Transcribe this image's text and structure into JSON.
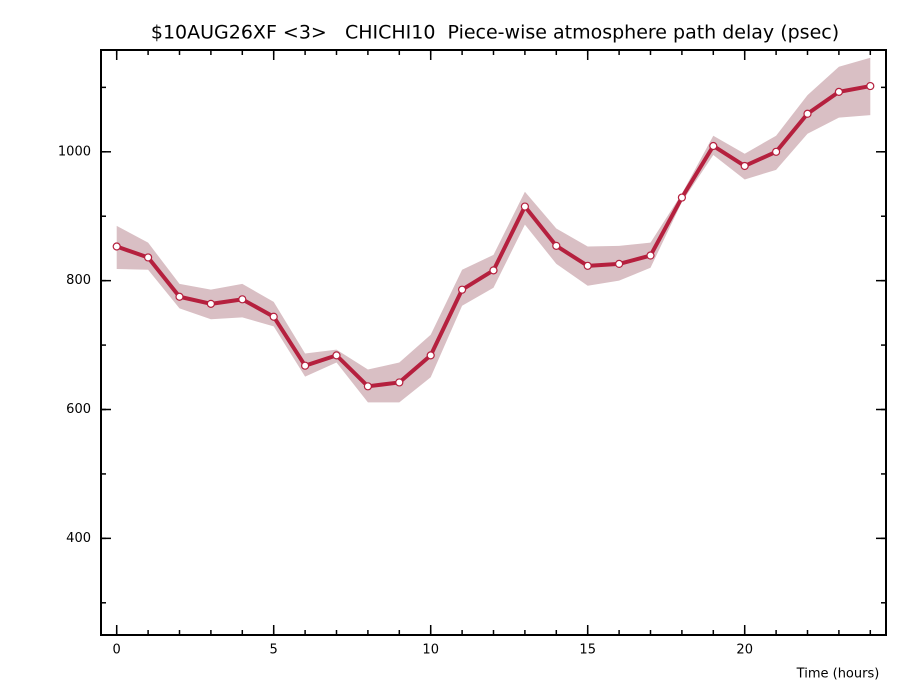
{
  "chart_data": {
    "type": "line",
    "title": "$10AUG26XF <3>   CHICHI10  Piece-wise atmosphere path delay (psec)",
    "x_label": "Time (hours)",
    "x": [
      0,
      1,
      2,
      3,
      4,
      5,
      6,
      7,
      8,
      9,
      10,
      11,
      12,
      13,
      14,
      15,
      16,
      17,
      18,
      19,
      20,
      21,
      22,
      23,
      24
    ],
    "series": [
      {
        "color": "#b5203e",
        "band_color": "#d9bfc4",
        "values": [
          853,
          836,
          775,
          764,
          771,
          744,
          668,
          684,
          636,
          642,
          684,
          786,
          816,
          915,
          854,
          823,
          826,
          839,
          929,
          1009,
          978,
          1000,
          1059,
          1093,
          1102
        ],
        "band_upper": [
          885,
          859,
          795,
          786,
          795,
          767,
          687,
          693,
          662,
          673,
          716,
          817,
          840,
          938,
          881,
          853,
          854,
          859,
          935,
          1025,
          997,
          1025,
          1088,
          1132,
          1146
        ],
        "band_lower": [
          818,
          817,
          757,
          740,
          743,
          729,
          651,
          673,
          611,
          611,
          650,
          761,
          789,
          887,
          826,
          792,
          800,
          820,
          922,
          995,
          957,
          972,
          1028,
          1053,
          1057
        ]
      }
    ],
    "xlim": [
      -0.5,
      24.5
    ],
    "ylim": [
      250,
      1158
    ],
    "xticks": [
      0,
      5,
      10,
      15,
      20
    ],
    "yticks": [
      400,
      600,
      800,
      1000
    ],
    "xminor_ticks": [
      0,
      1,
      2,
      3,
      4,
      5,
      6,
      7,
      8,
      9,
      10,
      11,
      12,
      13,
      14,
      15,
      16,
      17,
      18,
      19,
      20,
      21,
      22,
      23,
      24
    ],
    "yminor_ticks": [
      300,
      400,
      500,
      600,
      700,
      800,
      900,
      1000,
      1100
    ]
  }
}
